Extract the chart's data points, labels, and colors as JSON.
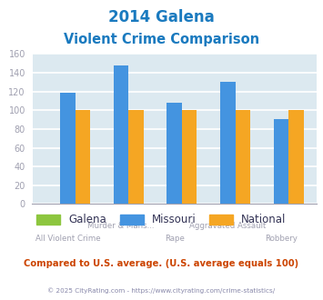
{
  "title_line1": "2014 Galena",
  "title_line2": "Violent Crime Comparison",
  "title_color": "#1a7abf",
  "categories": [
    "All Violent Crime",
    "Murder & Mans...",
    "Rape",
    "Aggravated Assault",
    "Robbery"
  ],
  "cat_line1": [
    "",
    "Murder & Mans...",
    "",
    "Aggravated Assault",
    ""
  ],
  "cat_line2": [
    "All Violent Crime",
    "",
    "Rape",
    "",
    "Robbery"
  ],
  "series": {
    "Galena": {
      "color": "#8dc63f",
      "values": [
        0,
        0,
        0,
        0,
        0
      ]
    },
    "Missouri": {
      "color": "#4494e0",
      "values": [
        119,
        148,
        108,
        130,
        91
      ]
    },
    "National": {
      "color": "#f5a623",
      "values": [
        100,
        100,
        100,
        100,
        100
      ]
    }
  },
  "ylim": [
    0,
    160
  ],
  "yticks": [
    0,
    20,
    40,
    60,
    80,
    100,
    120,
    140,
    160
  ],
  "bar_width": 0.28,
  "plot_bg_color": "#dce9f0",
  "grid_color": "#ffffff",
  "tick_color": "#a0a0b0",
  "footer_text": "Compared to U.S. average. (U.S. average equals 100)",
  "footer_color": "#cc4400",
  "copyright_text": "© 2025 CityRating.com - https://www.cityrating.com/crime-statistics/",
  "copyright_color": "#8888aa",
  "legend_labels": [
    "Galena",
    "Missouri",
    "National"
  ],
  "legend_colors": [
    "#8dc63f",
    "#4494e0",
    "#f5a623"
  ],
  "legend_text_color": "#333355"
}
